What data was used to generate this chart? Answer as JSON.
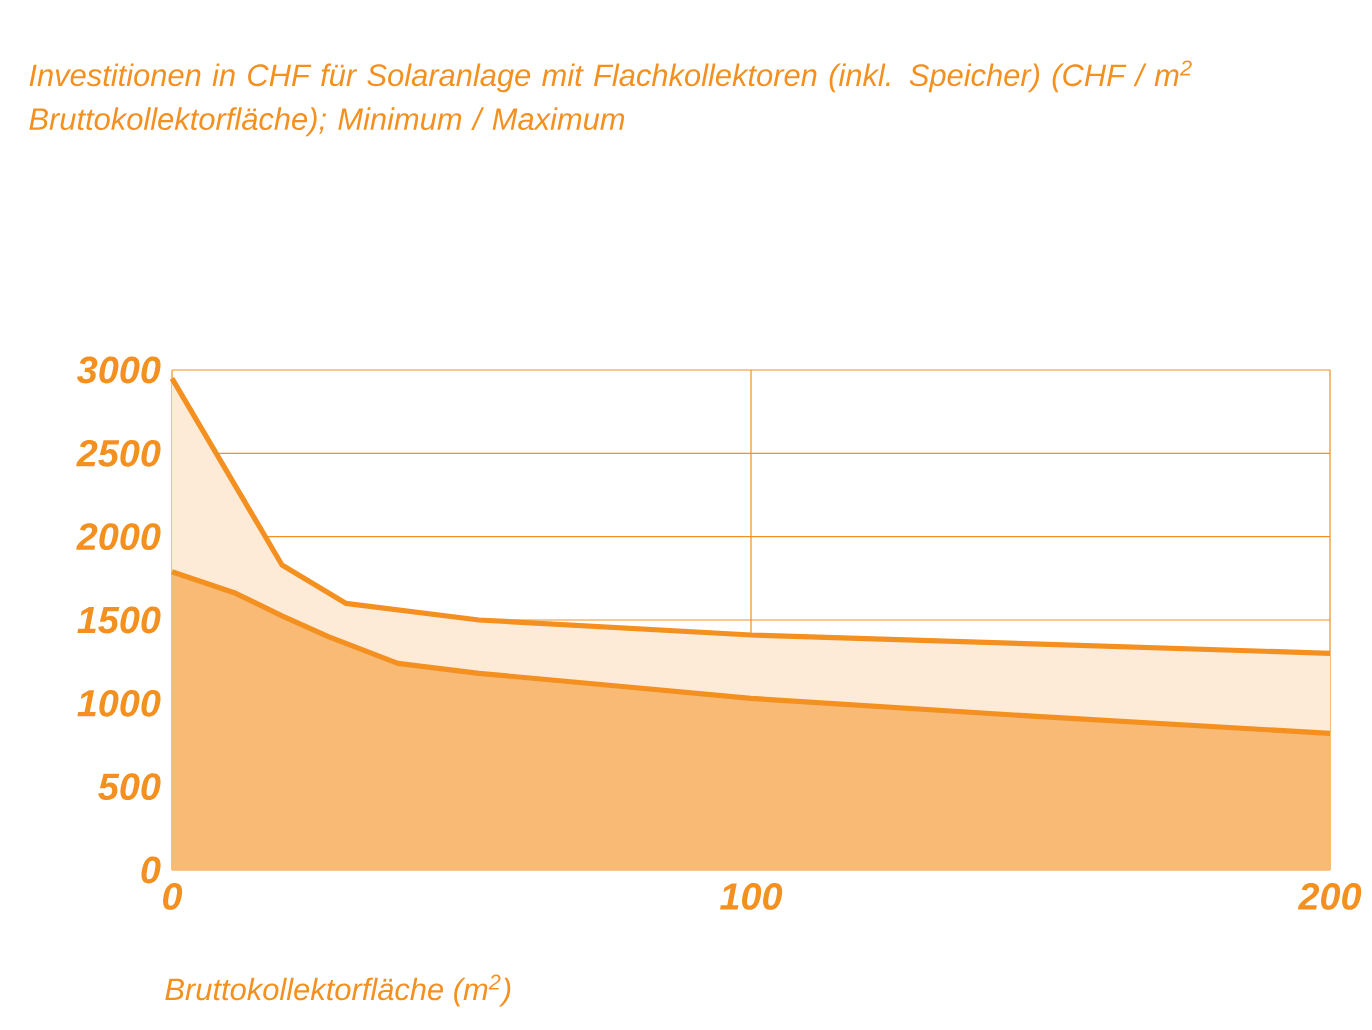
{
  "chart_data": {
    "type": "area",
    "ylabel": "Investitionen in CHF für Solaranlage mit Flachkollektoren (inkl. Speicher) (CHF / m$^{2}$ Bruttokollektorfläche); Minimum / Maximum",
    "xlabel": "Bruttokollektorfläche (m$^{2}$)",
    "xlim": [
      0,
      200
    ],
    "xticks": [
      0,
      100,
      200
    ],
    "ylim": [
      0,
      3000
    ],
    "yticks": [
      0,
      500,
      1000,
      1500,
      2000,
      2500,
      3000
    ],
    "grid": true,
    "series": [
      {
        "color": "#f39020",
        "x": [
          0,
          19,
          30,
          53,
          100,
          150,
          200
        ],
        "values": [
          2950,
          1830,
          1600,
          1500,
          1410,
          1355,
          1300
        ]
      },
      {
        "color": "#f39020",
        "x": [
          0,
          11,
          19,
          27,
          39,
          53,
          75,
          100,
          150,
          200
        ],
        "values": [
          1790,
          1660,
          1525,
          1400,
          1240,
          1180,
          1110,
          1030,
          920,
          820
        ]
      }
    ]
  }
}
